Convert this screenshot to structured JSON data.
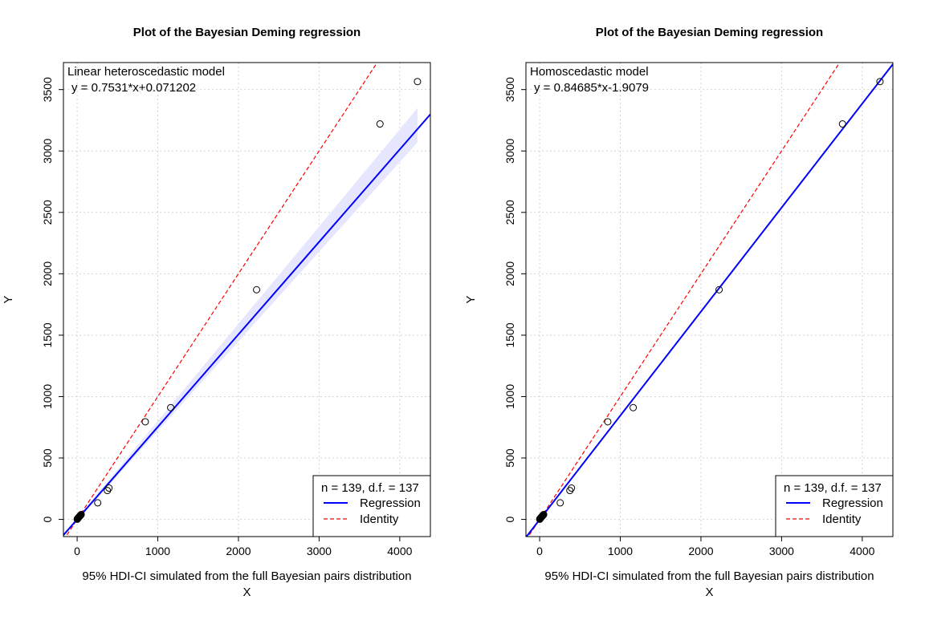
{
  "chart_data": [
    {
      "type": "scatter",
      "title": "Plot of the Bayesian Deming regression",
      "xlabel": "X",
      "ylabel": "Y",
      "subtitle": "95% HDI-CI simulated from the full Bayesian pairs distribution",
      "model_label": "Linear heteroscedastic model",
      "equation": "y = 0.7531*x+0.071202",
      "xlim": [
        -170,
        4380
      ],
      "ylim": [
        -140,
        3720
      ],
      "xticks": [
        0,
        1000,
        2000,
        3000,
        4000
      ],
      "yticks": [
        0,
        500,
        1000,
        1500,
        2000,
        2500,
        3000,
        3500
      ],
      "grid": true,
      "points": {
        "x": [
          1,
          3,
          5,
          8,
          10,
          13,
          16,
          20,
          24,
          28,
          32,
          36,
          40,
          45,
          50,
          255,
          375,
          395,
          845,
          1160,
          2225,
          3755,
          4220
        ],
        "y": [
          1,
          3,
          5,
          7,
          10,
          12,
          14,
          17,
          20,
          23,
          26,
          29,
          32,
          35,
          40,
          135,
          235,
          255,
          795,
          910,
          1870,
          3220,
          3565
        ]
      },
      "regression": {
        "slope": 0.7531,
        "intercept": 0.071202,
        "color": "#0000ff"
      },
      "identity": {
        "slope": 1,
        "intercept": 0,
        "color": "#ff0000"
      },
      "ci_band": {
        "x": [
          0,
          4220
        ],
        "lower": [
          -10,
          3070
        ],
        "upper": [
          10,
          3350
        ],
        "color": "#e6e6ff"
      },
      "legend": {
        "position": "bottom-right",
        "header": "n = 139, d.f. = 137",
        "items": [
          {
            "label": "Regression",
            "style": "solid",
            "color": "#0000ff"
          },
          {
            "label": "Identity",
            "style": "dashed",
            "color": "#ff0000"
          }
        ]
      }
    },
    {
      "type": "scatter",
      "title": "Plot of the Bayesian Deming regression",
      "xlabel": "X",
      "ylabel": "Y",
      "subtitle": "95% HDI-CI simulated from the full Bayesian pairs distribution",
      "model_label": "Homoscedastic model",
      "equation": "y = 0.84685*x-1.9079",
      "xlim": [
        -170,
        4380
      ],
      "ylim": [
        -140,
        3720
      ],
      "xticks": [
        0,
        1000,
        2000,
        3000,
        4000
      ],
      "yticks": [
        0,
        500,
        1000,
        1500,
        2000,
        2500,
        3000,
        3500
      ],
      "grid": true,
      "points": {
        "x": [
          1,
          3,
          5,
          8,
          10,
          13,
          16,
          20,
          24,
          28,
          32,
          36,
          40,
          45,
          50,
          255,
          375,
          395,
          845,
          1160,
          2225,
          3755,
          4220
        ],
        "y": [
          1,
          3,
          5,
          7,
          10,
          12,
          14,
          17,
          20,
          23,
          26,
          29,
          32,
          35,
          40,
          135,
          235,
          255,
          795,
          910,
          1870,
          3220,
          3565
        ]
      },
      "regression": {
        "slope": 0.84685,
        "intercept": -1.9079,
        "color": "#0000ff"
      },
      "identity": {
        "slope": 1,
        "intercept": 0,
        "color": "#ff0000"
      },
      "ci_band": null,
      "legend": {
        "position": "bottom-right",
        "header": "n = 139, d.f. = 137",
        "items": [
          {
            "label": "Regression",
            "style": "solid",
            "color": "#0000ff"
          },
          {
            "label": "Identity",
            "style": "dashed",
            "color": "#ff0000"
          }
        ]
      }
    }
  ]
}
